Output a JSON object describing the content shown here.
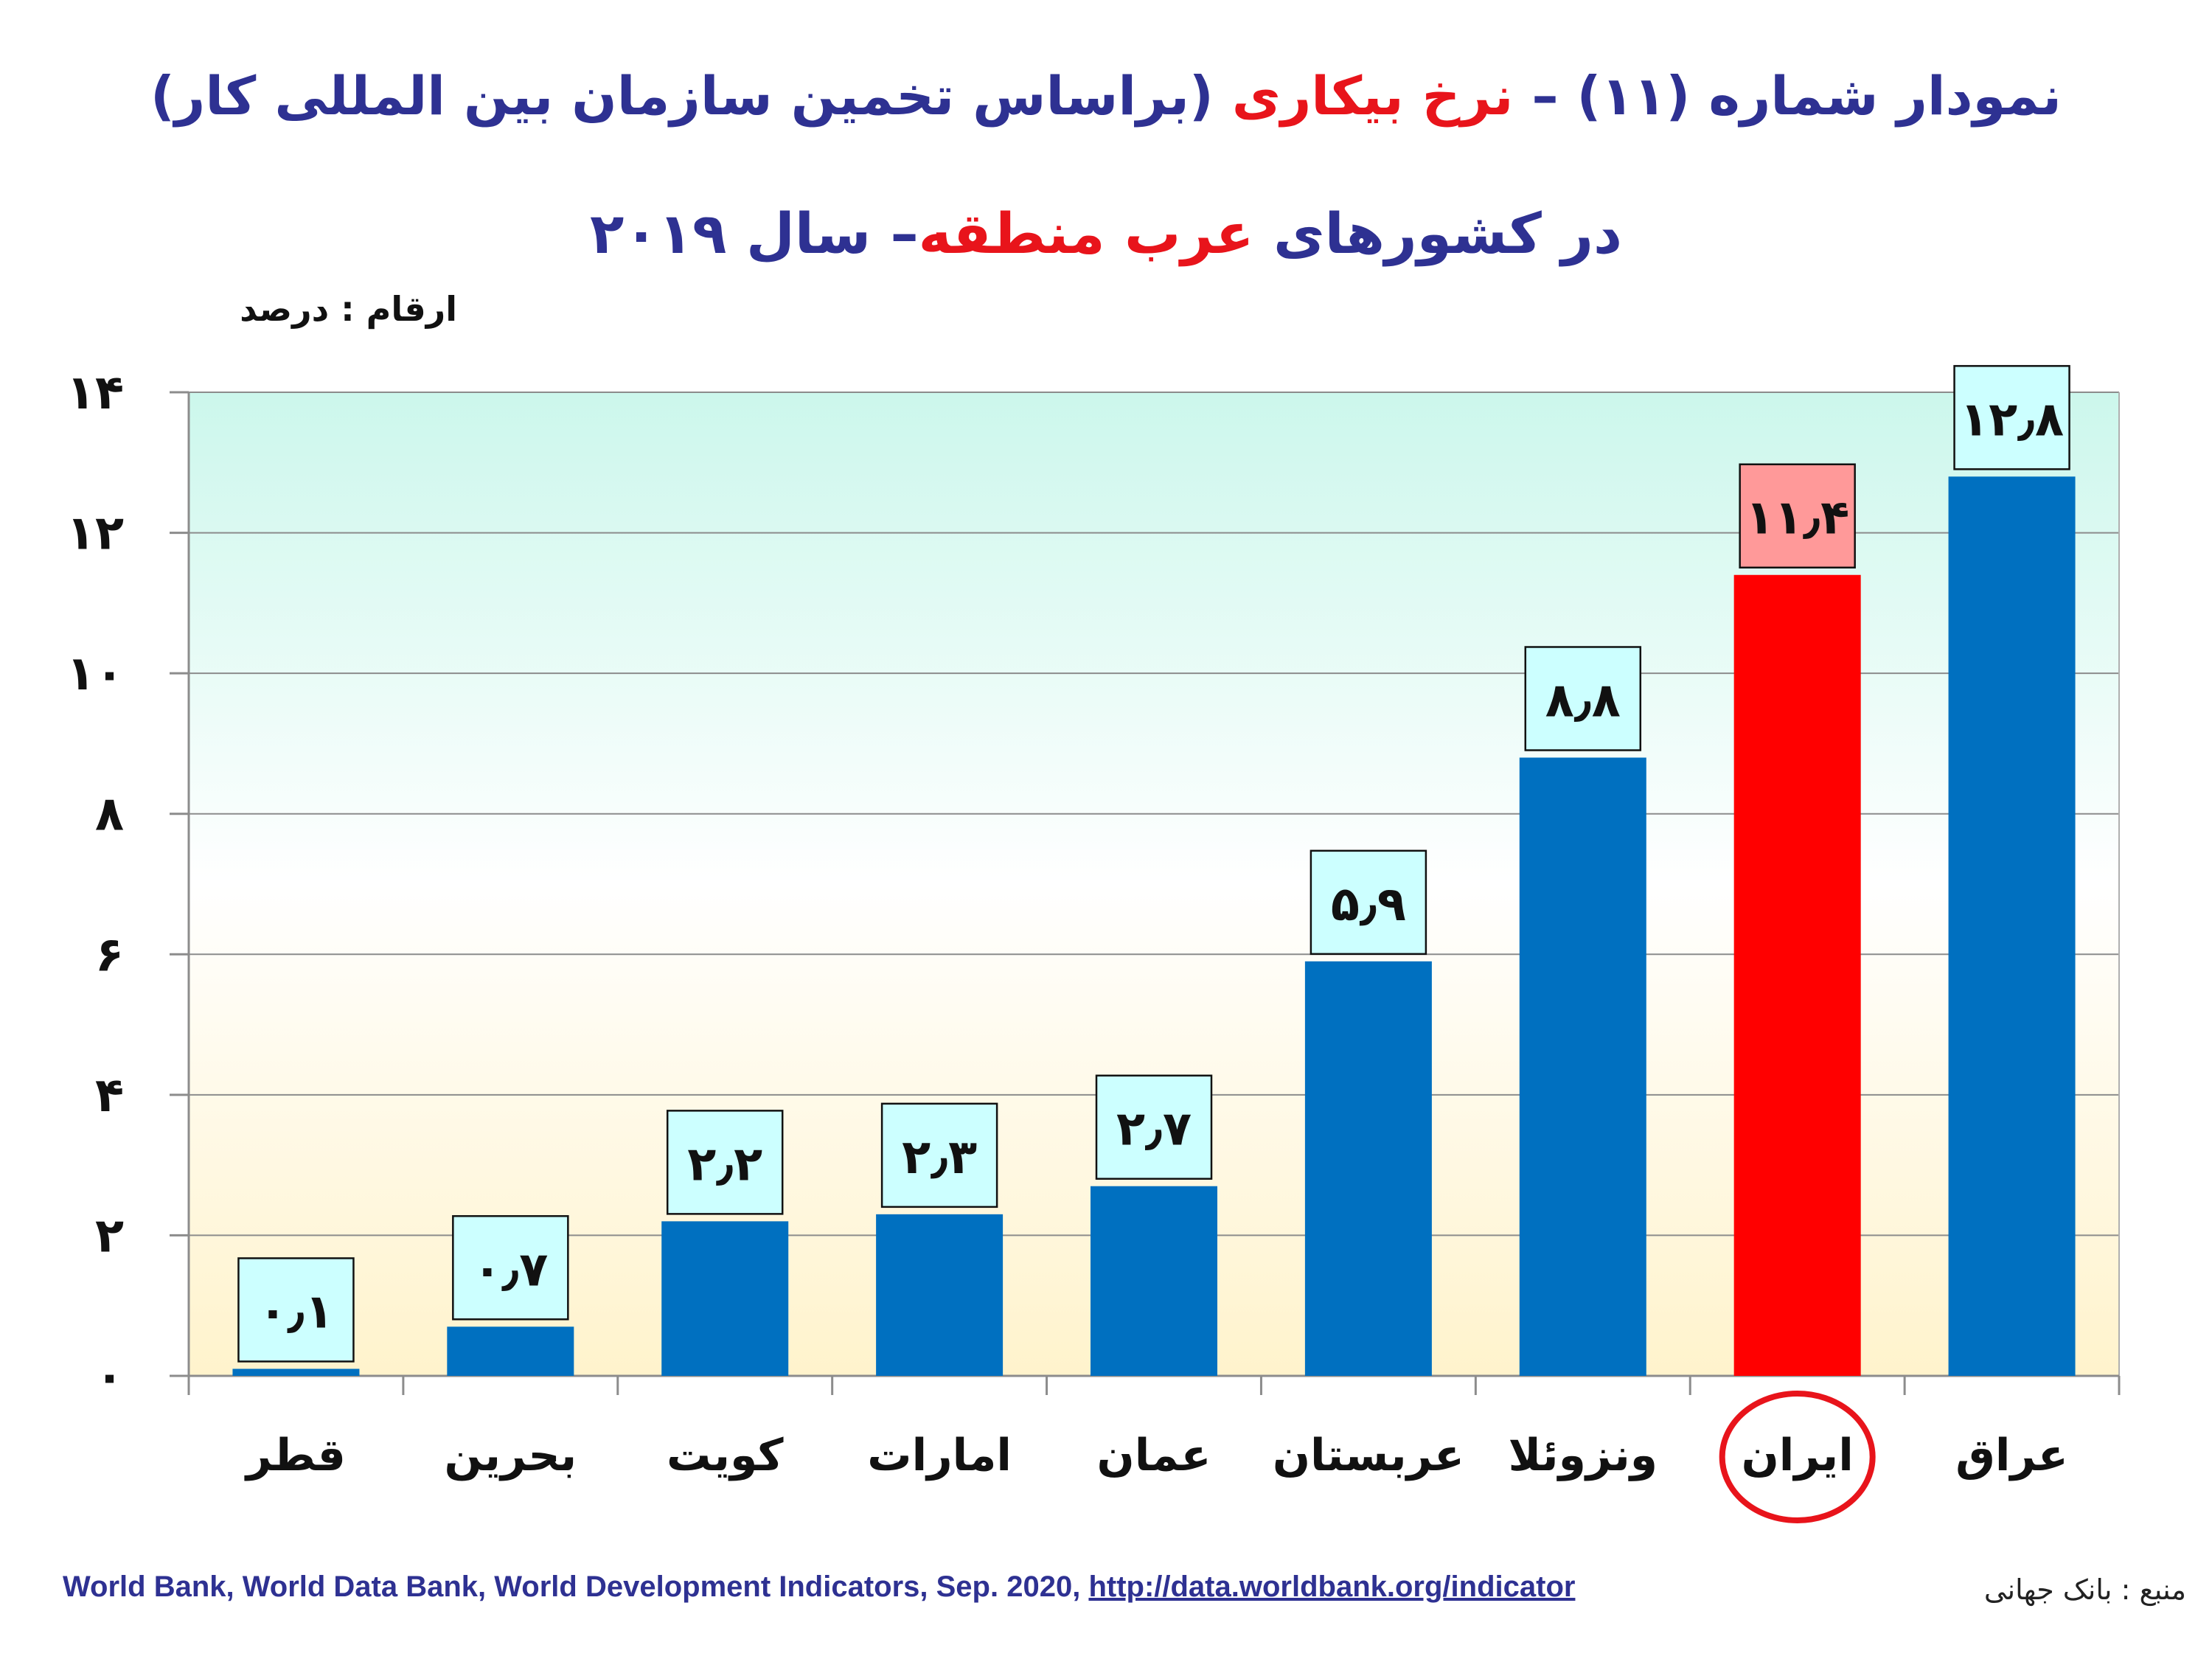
{
  "title": {
    "line1_part1": "نمودار شماره (۱۱) – ",
    "line1_part2": "نرخ بیکاری",
    "line1_part3": " (براساس تخمین سازمان بین المللی کار)",
    "line2_part1": "در کشورهای ",
    "line2_part2": "عرب منطقه",
    "line2_part3": "– سال ۲۰۱۹"
  },
  "units_label": "ارقام : درصد",
  "source": {
    "label": "منبع : بانک جهانی",
    "text": "World Bank, World Data Bank, World Development Indicators, Sep. 2020, ",
    "link": "http://data.worldbank.org/indicator"
  },
  "colors": {
    "bar_default": "#0070C0",
    "bar_highlight": "#FF0000",
    "label_box_default": "#CCFFFF",
    "label_box_highlight": "#FF9999",
    "title_blue": "#2E3192",
    "title_red": "#E8141B",
    "gradient_top": "#CCF7EC",
    "gradient_bottom": "#FFF3CC",
    "circle": "#E8141B"
  },
  "chart_data": {
    "type": "bar",
    "categories": [
      "قطر",
      "بحرین",
      "کویت",
      "امارات",
      "عمان",
      "عربستان",
      "ونزوئلا",
      "ایران",
      "عراق"
    ],
    "values": [
      0.1,
      0.7,
      2.2,
      2.3,
      2.7,
      5.9,
      8.8,
      11.4,
      12.8
    ],
    "value_labels": [
      "۰٫۱",
      "۰٫۷",
      "۲٫۲",
      "۲٫۳",
      "۲٫۷",
      "۵٫۹",
      "۸٫۸",
      "۱۱٫۴",
      "۱۲٫۸"
    ],
    "highlight": "ایران",
    "ylim": [
      0,
      14
    ],
    "yticks": [
      0,
      2,
      4,
      6,
      8,
      10,
      12,
      14
    ],
    "ytick_labels": [
      "۰",
      "۲",
      "۴",
      "۶",
      "۸",
      "۱۰",
      "۱۲",
      "۱۴"
    ],
    "grid": true
  }
}
